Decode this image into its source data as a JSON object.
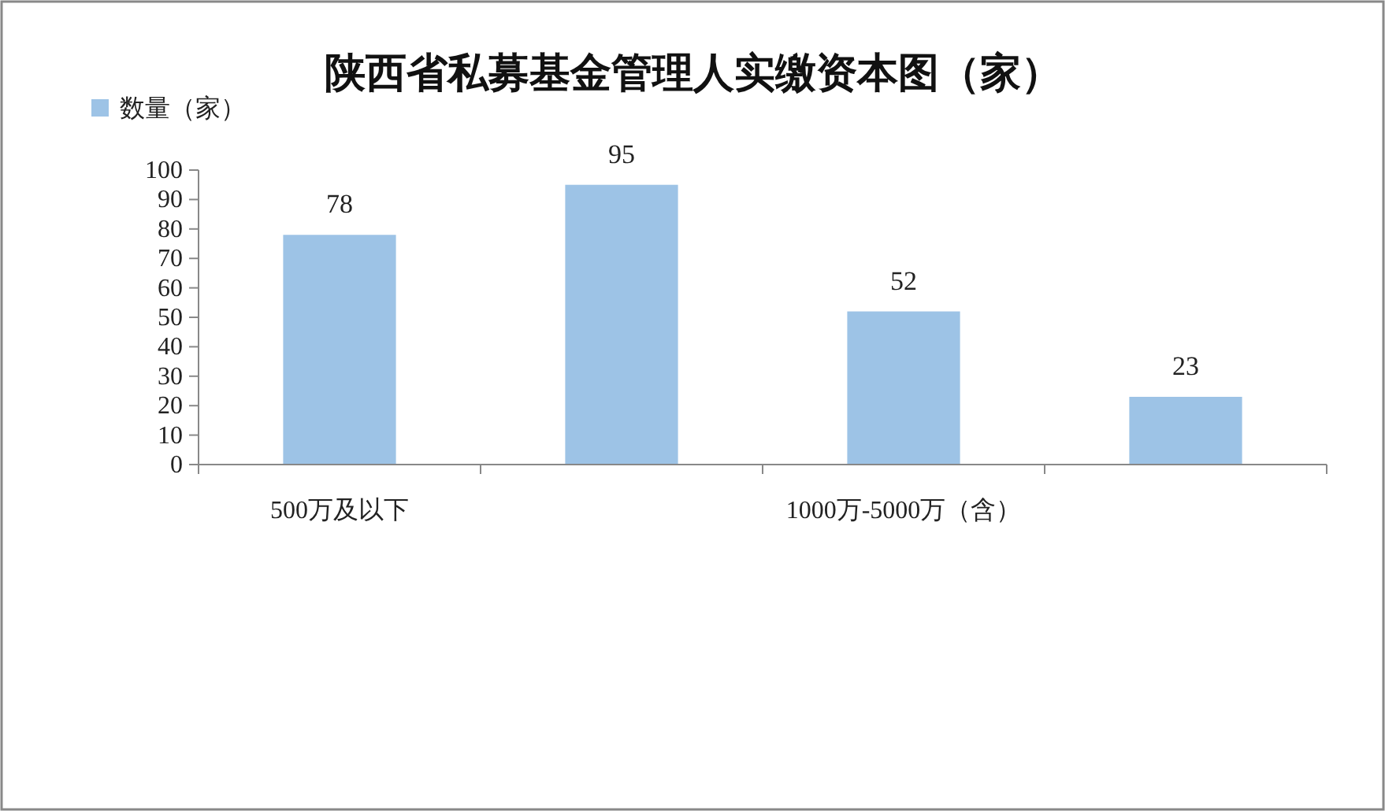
{
  "chart_data": {
    "type": "bar",
    "title": "陕西省私募基金管理人实缴资本图（家）",
    "categories": [
      "500万及以下",
      null,
      "1000万-5000万（含）",
      null
    ],
    "series": [
      {
        "name": "数量（家）",
        "color": "#9dc3e6",
        "values": [
          78,
          95,
          52,
          23
        ]
      }
    ],
    "ylim": [
      0,
      100
    ],
    "yticks": [
      0,
      10,
      20,
      30,
      40,
      50,
      60,
      70,
      80,
      90,
      100
    ],
    "data_labels": true,
    "legend": "top left",
    "grid": false
  }
}
